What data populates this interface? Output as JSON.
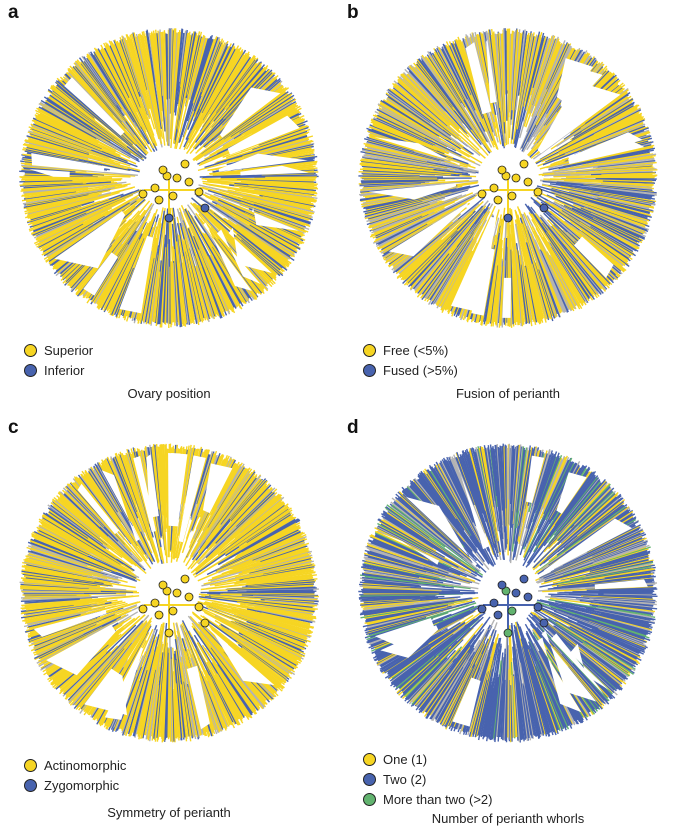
{
  "colors": {
    "yellow": "#f6d523",
    "blue": "#4863ae",
    "green": "#62b36f",
    "gray": "#b3b3b3"
  },
  "panels": [
    {
      "letter": "a",
      "title": "Ovary position",
      "legend": [
        {
          "label": "Superior",
          "color": "#f6d523"
        },
        {
          "label": "Inferior",
          "color": "#4863ae"
        }
      ],
      "mix": {
        "yellow": 0.68,
        "blue": 0.24,
        "gray": 0.08,
        "green": 0.0
      }
    },
    {
      "letter": "b",
      "title": "Fusion of perianth",
      "legend": [
        {
          "label": "Free (<5%)",
          "color": "#f6d523"
        },
        {
          "label": "Fused (>5%)",
          "color": "#4863ae"
        }
      ],
      "mix": {
        "yellow": 0.52,
        "blue": 0.26,
        "gray": 0.22,
        "green": 0.0
      }
    },
    {
      "letter": "c",
      "title": "Symmetry of perianth",
      "legend": [
        {
          "label": "Actinomorphic",
          "color": "#f6d523"
        },
        {
          "label": "Zygomorphic",
          "color": "#4863ae"
        }
      ],
      "mix": {
        "yellow": 0.7,
        "blue": 0.2,
        "gray": 0.1,
        "green": 0.0
      }
    },
    {
      "letter": "d",
      "title": "Number of perianth whorls",
      "legend": [
        {
          "label": "One (1)",
          "color": "#f6d523"
        },
        {
          "label": "Two (2)",
          "color": "#4863ae"
        },
        {
          "label": "More than two (>2)",
          "color": "#62b36f"
        }
      ],
      "mix": {
        "yellow": 0.14,
        "blue": 0.68,
        "gray": 0.12,
        "green": 0.06
      }
    }
  ]
}
